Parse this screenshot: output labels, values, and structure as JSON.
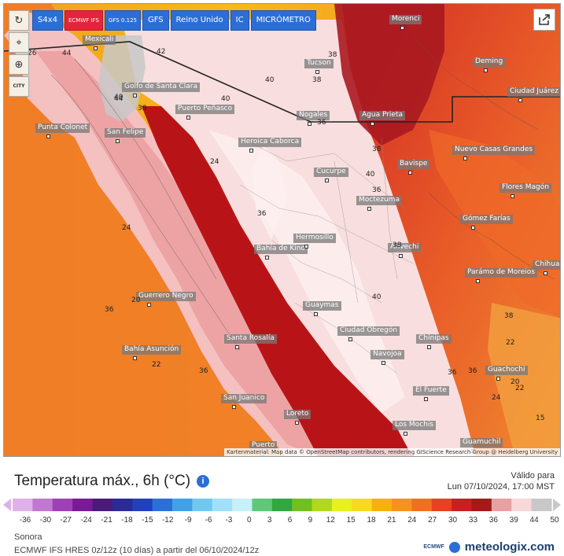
{
  "toolbar": {
    "refresh_icon": "refresh-icon",
    "buttons": [
      {
        "label": "S4x4",
        "color": "#2b6fd6"
      },
      {
        "label": "ECMWF IFS",
        "color": "#e4243b"
      },
      {
        "label": "GFS 0.125",
        "color": "#2b6fd6"
      },
      {
        "label": "GFS",
        "color": "#2b6fd6"
      },
      {
        "label": "Reino Unido",
        "color": "#2b6fd6"
      },
      {
        "label": "IC",
        "color": "#2b6fd6"
      },
      {
        "label": "MICRÓMETRO",
        "color": "#2b6fd6"
      }
    ],
    "side": {
      "location_icon": "location-pin-icon",
      "zoom_icon": "zoom-icon",
      "city_label": "CITY"
    },
    "share_icon": "share-icon"
  },
  "map": {
    "cities": [
      {
        "name": "Mexicali"
      },
      {
        "name": "Tucson"
      },
      {
        "name": "Morenci"
      },
      {
        "name": "Deming"
      },
      {
        "name": "Ciudad Juárez"
      },
      {
        "name": "Golfo de Santa Clara"
      },
      {
        "name": "Puerto Peñasco"
      },
      {
        "name": "Nogales"
      },
      {
        "name": "Agua Prieta"
      },
      {
        "name": "Punta Colonet"
      },
      {
        "name": "San Felipe"
      },
      {
        "name": "Heroica Caborca"
      },
      {
        "name": "Cucurpe"
      },
      {
        "name": "Bavispe"
      },
      {
        "name": "Nuevo Casas Grandes"
      },
      {
        "name": "Flores Magón"
      },
      {
        "name": "Moctezuma"
      },
      {
        "name": "Gómez Farías"
      },
      {
        "name": "Hermosillo"
      },
      {
        "name": "Bahía de Kino"
      },
      {
        "name": "Arivechi"
      },
      {
        "name": "Chihua"
      },
      {
        "name": "Parámo de Moreios"
      },
      {
        "name": "Guerrero Negro"
      },
      {
        "name": "Guaymas"
      },
      {
        "name": "Ciudad Obregón"
      },
      {
        "name": "Bahía Asunción"
      },
      {
        "name": "Santa Rosalía"
      },
      {
        "name": "Chínipas"
      },
      {
        "name": "Navojoa"
      },
      {
        "name": "Guachochi"
      },
      {
        "name": "San Juanico"
      },
      {
        "name": "El Fuerte"
      },
      {
        "name": "Loreto"
      },
      {
        "name": "Los Mochis"
      },
      {
        "name": "Guamuchil"
      },
      {
        "name": "Puerto"
      }
    ],
    "temperature_labels": [
      "44",
      "42",
      "40",
      "38",
      "40",
      "38",
      "40",
      "44",
      "38",
      "36",
      "38",
      "40",
      "36",
      "36",
      "40",
      "38",
      "38",
      "36",
      "20",
      "36",
      "24",
      "22",
      "24",
      "22",
      "36",
      "22",
      "20",
      "24",
      "36",
      "15",
      "26"
    ],
    "attribution": "Kartenmaterial: Map data © OpenStreetMap contributors, rendering GIScience Research Group @ Heidelberg University"
  },
  "legend": {
    "title": "Temperatura máx., 6h (°C)",
    "info_icon": "info-icon",
    "valid_label": "Válido para",
    "valid_date": "Lun 07/10/2024, 17:00 MST",
    "ticks": [
      "-36",
      "-30",
      "-27",
      "-24",
      "-21",
      "-18",
      "-15",
      "-12",
      "-9",
      "-6",
      "-3",
      "0",
      "3",
      "6",
      "9",
      "12",
      "15",
      "18",
      "21",
      "24",
      "27",
      "30",
      "33",
      "36",
      "39",
      "44",
      "50"
    ],
    "colors": [
      "#e0b0e8",
      "#c078d0",
      "#a040b8",
      "#7a1a98",
      "#4a1a7a",
      "#2a2a98",
      "#2040c0",
      "#2a70d8",
      "#40a0e8",
      "#70c8f0",
      "#a0e0f8",
      "#c8f0f8",
      "#60c878",
      "#30a840",
      "#70c020",
      "#b0d820",
      "#e8f020",
      "#f8d820",
      "#f8b010",
      "#f89020",
      "#f07020",
      "#e84020",
      "#c82020",
      "#a81818",
      "#e8a0a0",
      "#f8d8d8",
      "#c8c8c8"
    ]
  },
  "footer": {
    "region": "Sonora",
    "model_line": "ECMWF IFS HRES 0z/12z (10 días) a partir del 06/10/2024/12z",
    "ecmwf_logo": "ECMWF",
    "brand": "meteologix.com",
    "brand_icon": "globe-icon"
  }
}
